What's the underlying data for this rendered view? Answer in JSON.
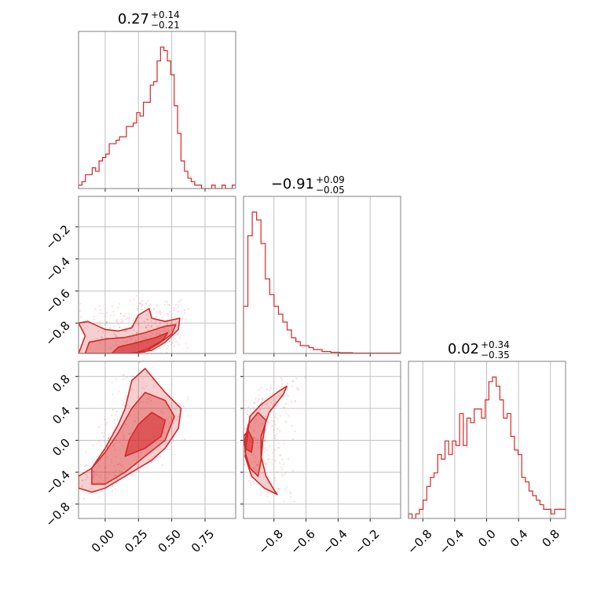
{
  "colors": {
    "series": "#d62728",
    "grid": "#c0c0c0",
    "frame": "#808080"
  },
  "chart_data": {
    "type": "corner",
    "params": [
      {
        "title": {
          "value": "0.27",
          "plus": "+0.14",
          "minus": "−0.21"
        },
        "range": [
          -0.2,
          0.98
        ],
        "ticks": [
          0.0,
          0.25,
          0.5,
          0.75
        ],
        "tick_labels": [
          "0.00",
          "0.25",
          "0.50",
          "0.75"
        ],
        "hist": [
          1,
          2,
          4,
          4,
          6,
          5,
          8,
          9,
          10,
          13,
          13,
          14,
          15,
          15,
          18,
          18,
          19,
          22,
          21,
          25,
          25,
          30,
          31,
          37,
          41,
          40,
          37,
          33,
          24,
          16,
          8,
          5,
          3,
          2,
          1,
          1,
          0,
          0,
          0,
          1,
          0,
          0,
          1,
          0,
          0,
          1
        ]
      },
      {
        "title": {
          "value": "−0.91",
          "plus": "+0.09",
          "minus": "−0.05"
        },
        "range": [
          -0.99,
          -0.01
        ],
        "ticks": [
          -0.8,
          -0.6,
          -0.4,
          -0.2
        ],
        "tick_labels": [
          "−0.8",
          "−0.6",
          "−0.4",
          "−0.2"
        ],
        "hist": [
          12,
          30,
          36,
          34,
          28,
          19,
          15,
          12,
          10,
          8,
          6,
          4,
          3,
          2,
          2,
          1.5,
          1,
          1,
          0.5,
          0.5,
          0.3,
          0.3,
          0.2,
          0.2,
          0.2,
          0.1,
          0.1,
          0.1,
          0.1,
          0.1,
          0.1,
          0.1,
          0.1,
          0.1,
          0.1,
          0.1
        ]
      },
      {
        "title": {
          "value": "0.02",
          "plus": "+0.34",
          "minus": "−0.35"
        },
        "range": [
          -0.98,
          0.99
        ],
        "ticks": [
          -0.8,
          -0.4,
          0.0,
          0.4,
          0.8
        ],
        "tick_labels": [
          "−0.8",
          "−0.4",
          "0.0",
          "0.4",
          "0.8"
        ],
        "y_tick_labels": [
          "−0.8",
          "−0.4",
          "0.0",
          "0.4",
          "0.8"
        ],
        "hist": [
          1,
          0,
          1,
          2,
          4,
          7,
          9,
          10,
          14,
          13,
          17,
          14,
          17,
          16,
          23,
          16,
          22,
          21,
          24,
          24,
          22,
          26,
          30,
          31,
          29,
          26,
          22,
          23,
          18,
          15,
          14,
          9,
          8,
          6,
          5,
          4,
          3,
          2,
          2,
          1,
          2,
          2,
          2
        ]
      }
    ],
    "pairs": [
      {
        "x_param": 0,
        "y_param": 1,
        "levels": [
          {
            "alpha": 0.22,
            "points": [
              [
                -0.2,
                -0.99
              ],
              [
                -0.15,
                -0.88
              ],
              [
                -0.2,
                -0.8
              ],
              [
                -0.13,
                -0.79
              ],
              [
                0.0,
                -0.84
              ],
              [
                0.1,
                -0.85
              ],
              [
                0.2,
                -0.83
              ],
              [
                0.25,
                -0.75
              ],
              [
                0.33,
                -0.71
              ],
              [
                0.35,
                -0.77
              ],
              [
                0.45,
                -0.79
              ],
              [
                0.56,
                -0.77
              ],
              [
                0.55,
                -0.84
              ],
              [
                0.45,
                -0.92
              ],
              [
                0.35,
                -0.97
              ],
              [
                0.2,
                -0.99
              ]
            ]
          },
          {
            "alpha": 0.35,
            "points": [
              [
                -0.15,
                -0.99
              ],
              [
                -0.12,
                -0.92
              ],
              [
                0.0,
                -0.9
              ],
              [
                0.15,
                -0.89
              ],
              [
                0.3,
                -0.86
              ],
              [
                0.45,
                -0.82
              ],
              [
                0.53,
                -0.81
              ],
              [
                0.5,
                -0.87
              ],
              [
                0.4,
                -0.93
              ],
              [
                0.3,
                -0.98
              ],
              [
                0.15,
                -0.99
              ]
            ]
          },
          {
            "alpha": 0.55,
            "points": [
              [
                0.05,
                -0.99
              ],
              [
                0.1,
                -0.95
              ],
              [
                0.25,
                -0.92
              ],
              [
                0.38,
                -0.89
              ],
              [
                0.47,
                -0.86
              ],
              [
                0.43,
                -0.91
              ],
              [
                0.32,
                -0.96
              ],
              [
                0.22,
                -0.99
              ]
            ]
          }
        ],
        "outline": [
          [
            -0.2,
            -0.8
          ],
          [
            -0.13,
            -0.79
          ],
          [
            0.0,
            -0.84
          ],
          [
            0.1,
            -0.85
          ],
          [
            0.2,
            -0.83
          ],
          [
            0.25,
            -0.75
          ],
          [
            0.33,
            -0.71
          ],
          [
            0.35,
            -0.77
          ],
          [
            0.45,
            -0.79
          ],
          [
            0.56,
            -0.77
          ],
          [
            0.55,
            -0.84
          ],
          [
            0.45,
            -0.92
          ],
          [
            0.35,
            -0.97
          ]
        ]
      },
      {
        "x_param": 0,
        "y_param": 2,
        "levels": [
          {
            "alpha": 0.22,
            "points": [
              [
                -0.2,
                -0.6
              ],
              [
                -0.1,
                -0.65
              ],
              [
                0.0,
                -0.6
              ],
              [
                0.1,
                -0.5
              ],
              [
                0.2,
                -0.4
              ],
              [
                0.35,
                -0.25
              ],
              [
                0.45,
                -0.1
              ],
              [
                0.55,
                0.15
              ],
              [
                0.57,
                0.4
              ],
              [
                0.45,
                0.6
              ],
              [
                0.3,
                0.9
              ],
              [
                0.2,
                0.75
              ],
              [
                0.15,
                0.4
              ],
              [
                0.1,
                0.2
              ],
              [
                0.0,
                -0.1
              ],
              [
                -0.1,
                -0.35
              ],
              [
                -0.2,
                -0.45
              ]
            ]
          },
          {
            "alpha": 0.35,
            "points": [
              [
                -0.1,
                -0.55
              ],
              [
                0.0,
                -0.55
              ],
              [
                0.15,
                -0.4
              ],
              [
                0.3,
                -0.2
              ],
              [
                0.45,
                0.0
              ],
              [
                0.52,
                0.3
              ],
              [
                0.45,
                0.5
              ],
              [
                0.3,
                0.6
              ],
              [
                0.2,
                0.4
              ],
              [
                0.1,
                0.1
              ],
              [
                0.0,
                -0.15
              ],
              [
                -0.1,
                -0.35
              ]
            ]
          },
          {
            "alpha": 0.55,
            "points": [
              [
                0.15,
                -0.2
              ],
              [
                0.3,
                -0.1
              ],
              [
                0.42,
                0.05
              ],
              [
                0.45,
                0.25
              ],
              [
                0.35,
                0.35
              ],
              [
                0.25,
                0.2
              ],
              [
                0.18,
                0.0
              ]
            ]
          }
        ],
        "outline": [
          [
            -0.2,
            -0.6
          ],
          [
            -0.1,
            -0.65
          ],
          [
            0.0,
            -0.6
          ],
          [
            0.1,
            -0.5
          ],
          [
            0.2,
            -0.4
          ],
          [
            0.35,
            -0.25
          ],
          [
            0.45,
            -0.1
          ],
          [
            0.55,
            0.15
          ],
          [
            0.57,
            0.4
          ],
          [
            0.45,
            0.6
          ],
          [
            0.3,
            0.9
          ],
          [
            0.2,
            0.75
          ],
          [
            0.15,
            0.4
          ],
          [
            0.1,
            0.2
          ],
          [
            0.0,
            -0.1
          ],
          [
            -0.1,
            -0.35
          ],
          [
            -0.2,
            -0.45
          ],
          [
            -0.2,
            -0.6
          ]
        ]
      },
      {
        "x_param": 1,
        "y_param": 2,
        "levels": [
          {
            "alpha": 0.22,
            "points": [
              [
                -0.97,
                0.0
              ],
              [
                -0.95,
                0.3
              ],
              [
                -0.88,
                0.45
              ],
              [
                -0.78,
                0.6
              ],
              [
                -0.72,
                0.68
              ],
              [
                -0.74,
                0.58
              ],
              [
                -0.83,
                0.35
              ],
              [
                -0.88,
                0.05
              ],
              [
                -0.88,
                -0.2
              ],
              [
                -0.85,
                -0.45
              ],
              [
                -0.8,
                -0.62
              ],
              [
                -0.78,
                -0.68
              ],
              [
                -0.86,
                -0.6
              ],
              [
                -0.94,
                -0.45
              ],
              [
                -0.98,
                -0.2
              ]
            ]
          },
          {
            "alpha": 0.35,
            "points": [
              [
                -0.98,
                0.0
              ],
              [
                -0.96,
                0.2
              ],
              [
                -0.9,
                0.35
              ],
              [
                -0.85,
                0.25
              ],
              [
                -0.87,
                0.0
              ],
              [
                -0.88,
                -0.25
              ],
              [
                -0.9,
                -0.45
              ],
              [
                -0.95,
                -0.35
              ],
              [
                -0.98,
                -0.15
              ]
            ]
          },
          {
            "alpha": 0.55,
            "points": [
              [
                -0.99,
                0.05
              ],
              [
                -0.96,
                0.12
              ],
              [
                -0.93,
                0.0
              ],
              [
                -0.94,
                -0.15
              ],
              [
                -0.98,
                -0.1
              ]
            ]
          }
        ],
        "outline": [
          [
            -0.72,
            0.68
          ],
          [
            -0.74,
            0.58
          ],
          [
            -0.83,
            0.35
          ],
          [
            -0.88,
            0.05
          ],
          [
            -0.88,
            -0.2
          ],
          [
            -0.85,
            -0.45
          ],
          [
            -0.8,
            -0.62
          ],
          [
            -0.78,
            -0.68
          ],
          [
            -0.86,
            -0.6
          ],
          [
            -0.94,
            -0.45
          ],
          [
            -0.98,
            -0.2
          ],
          [
            -0.97,
            0.0
          ],
          [
            -0.95,
            0.3
          ],
          [
            -0.88,
            0.45
          ],
          [
            -0.78,
            0.6
          ],
          [
            -0.72,
            0.68
          ]
        ]
      }
    ]
  }
}
